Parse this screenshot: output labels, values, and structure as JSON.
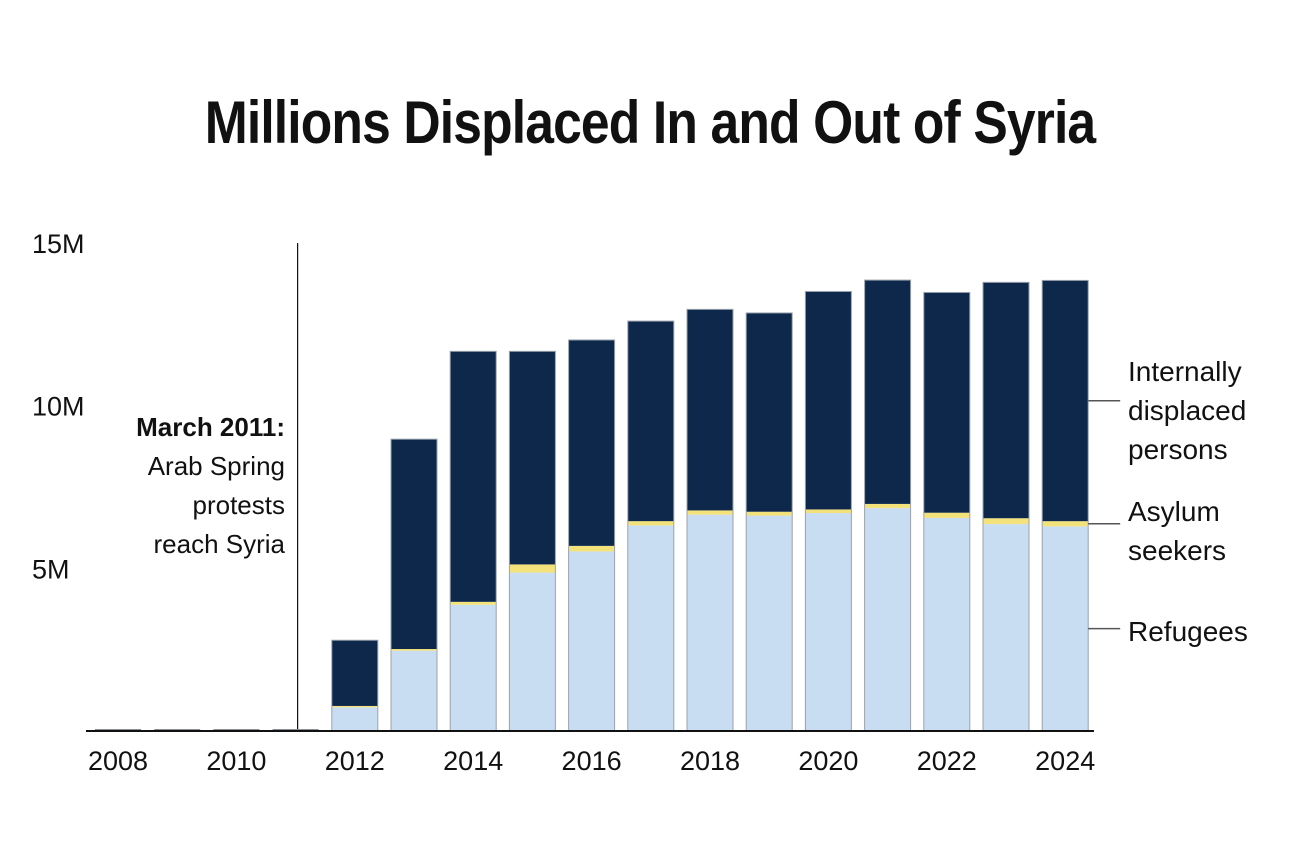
{
  "chart_data": {
    "type": "bar",
    "stacked": true,
    "title": "Millions Displaced In and Out of Syria",
    "xlabel": "",
    "ylabel": "",
    "ylim": [
      0,
      15
    ],
    "y_ticks": [
      {
        "value": 5,
        "label": "5M"
      },
      {
        "value": 10,
        "label": "10M"
      },
      {
        "value": 15,
        "label": "15M"
      }
    ],
    "x_tick_labels": [
      "2008",
      "2010",
      "2012",
      "2014",
      "2016",
      "2018",
      "2020",
      "2022",
      "2024"
    ],
    "categories": [
      "2008",
      "2009",
      "2010",
      "2011",
      "2012",
      "2013",
      "2014",
      "2015",
      "2016",
      "2017",
      "2018",
      "2019",
      "2020",
      "2021",
      "2022",
      "2023",
      "2024"
    ],
    "series": [
      {
        "name": "Refugees",
        "color": "#c8dcf2",
        "values": [
          0.02,
          0.02,
          0.02,
          0.02,
          0.73,
          2.47,
          3.88,
          4.87,
          5.52,
          6.32,
          6.65,
          6.62,
          6.7,
          6.85,
          6.55,
          6.36,
          6.29
        ]
      },
      {
        "name": "Asylum seekers",
        "color": "#f3e17a",
        "values": [
          0.0,
          0.0,
          0.0,
          0.01,
          0.04,
          0.05,
          0.09,
          0.25,
          0.17,
          0.13,
          0.13,
          0.12,
          0.11,
          0.13,
          0.16,
          0.18,
          0.16
        ]
      },
      {
        "name": "Internally displaced persons",
        "color": "#0e284c",
        "values": [
          0.0,
          0.0,
          0.0,
          0.0,
          2.02,
          6.45,
          7.7,
          6.55,
          6.33,
          6.15,
          6.18,
          6.11,
          6.7,
          6.88,
          6.77,
          7.25,
          7.4
        ]
      }
    ],
    "visible_bar_years": [
      "2012",
      "2013",
      "2014",
      "2015",
      "2016",
      "2017",
      "2018",
      "2019",
      "2020",
      "2021",
      "2022",
      "2023",
      "2024"
    ],
    "annotation": {
      "year": "2011",
      "title": "March 2011:",
      "lines": [
        "Arab Spring",
        "protests",
        "reach Syria"
      ]
    },
    "legend": [
      {
        "series": "Internally displaced persons",
        "lines": [
          "Internally",
          "displaced",
          "persons"
        ]
      },
      {
        "series": "Asylum seekers",
        "lines": [
          "Asylum",
          "seekers"
        ]
      },
      {
        "series": "Refugees",
        "lines": [
          "Refugees"
        ]
      }
    ],
    "colors": {
      "axis": "#111111",
      "bar_outline": "#9aa3ad",
      "leader": "#555555"
    }
  }
}
